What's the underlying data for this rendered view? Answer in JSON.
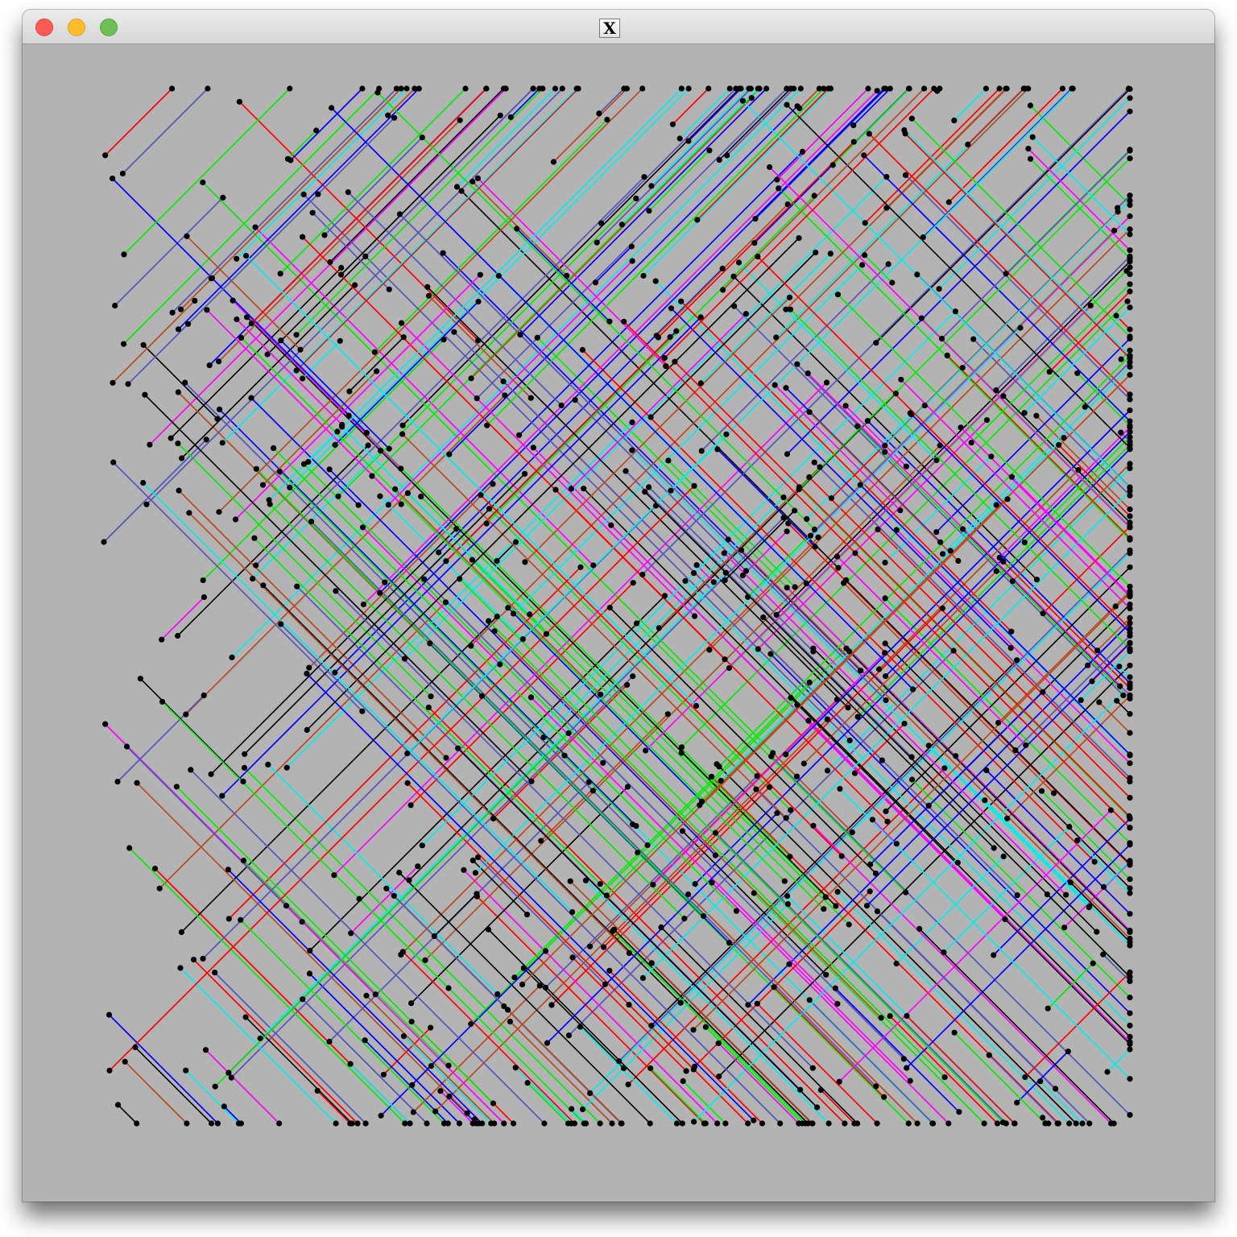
{
  "window": {
    "title_icon_glyph": "X",
    "controls": [
      {
        "name": "close",
        "color": "#fc5b55"
      },
      {
        "name": "minimize",
        "color": "#fdbb2d"
      },
      {
        "name": "zoom",
        "color": "#6fbf57"
      }
    ]
  },
  "canvas": {
    "background": "#b3b3b3",
    "palette": [
      "#ff0000",
      "#00ee00",
      "#0000ff",
      "#ff00ff",
      "#00eeee",
      "#000000",
      "#b84a1e",
      "#5555bb"
    ],
    "dot_color": "#000000"
  }
}
